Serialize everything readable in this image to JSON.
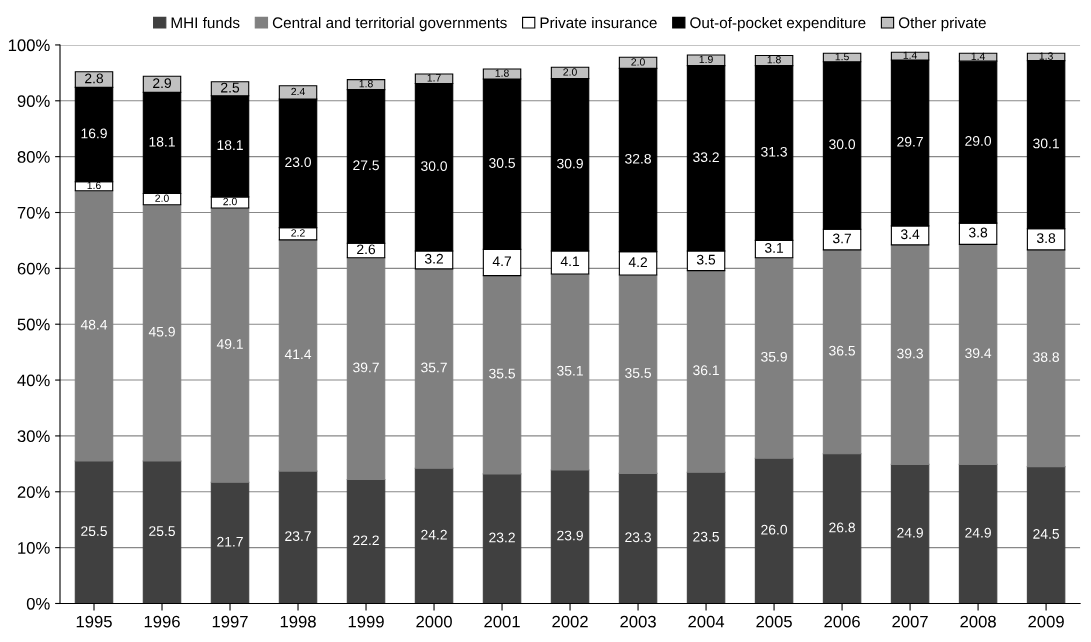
{
  "chart_data": {
    "type": "bar",
    "stacked": true,
    "categories": [
      "1995",
      "1996",
      "1997",
      "1998",
      "1999",
      "2000",
      "2001",
      "2002",
      "2003",
      "2004",
      "2005",
      "2006",
      "2007",
      "2008",
      "2009"
    ],
    "series": [
      {
        "name": "MHI funds",
        "color": "#404040",
        "values": [
          25.5,
          25.5,
          21.7,
          23.7,
          22.2,
          24.2,
          23.2,
          23.9,
          23.3,
          23.5,
          26.0,
          26.8,
          24.9,
          24.9,
          24.5
        ],
        "value_labels": [
          "25.5",
          "25.5",
          "21.7",
          "23.7",
          "22.2",
          "24.2",
          "23.2",
          "23.9",
          "23.3",
          "23.5",
          "26.0",
          "26.8",
          "24.9",
          "24.9",
          "24.5"
        ]
      },
      {
        "name": "Central and territorial governments",
        "color": "#808080",
        "values": [
          48.4,
          45.9,
          49.1,
          41.4,
          39.7,
          35.7,
          35.5,
          35.1,
          35.5,
          36.1,
          35.9,
          36.5,
          39.3,
          39.4,
          38.8
        ],
        "value_labels": [
          "48.4",
          "45.9",
          "49.1",
          "41.4",
          "39.7",
          "35.7",
          "35.5",
          "35.1",
          "35.5",
          "36.1",
          "35.9",
          "36.5",
          "39.3",
          "39.4",
          "38.8"
        ]
      },
      {
        "name": "Private insurance",
        "color": "#ffffff",
        "values": [
          1.6,
          2.0,
          2.0,
          2.2,
          2.6,
          3.2,
          4.7,
          4.1,
          4.2,
          3.5,
          3.1,
          3.7,
          3.4,
          3.8,
          3.8
        ],
        "value_labels": [
          "1.6",
          "2.0",
          "2.0",
          "2.2",
          "2.6",
          "3.2",
          "4.7",
          "4.1",
          "4.2",
          "3.5",
          "3.1",
          "3.7",
          "3.4",
          "3.8",
          "3.8"
        ]
      },
      {
        "name": "Out-of-pocket expenditure",
        "color": "#000000",
        "values": [
          16.9,
          18.1,
          18.1,
          23.0,
          27.5,
          30.0,
          30.5,
          30.9,
          32.8,
          33.2,
          31.3,
          30.0,
          29.7,
          29.0,
          30.1
        ],
        "value_labels": [
          "16.9",
          "18.1",
          "18.1",
          "23.0",
          "27.5",
          "30.0",
          "30.5",
          "30.9",
          "32.8",
          "33.2",
          "31.3",
          "30.0",
          "29.7",
          "29.0",
          "30.1"
        ]
      },
      {
        "name": "Other private",
        "color": "#c0c0c0",
        "values": [
          2.8,
          2.9,
          2.5,
          2.4,
          1.8,
          1.7,
          1.8,
          2.0,
          2.0,
          1.9,
          1.8,
          1.5,
          1.4,
          1.4,
          1.3
        ],
        "value_labels": [
          "2.8",
          "2.9",
          "2.5",
          "2.4",
          "1.8",
          "1.7",
          "1.8",
          "2.0",
          "2.0",
          "1.9",
          "1.8",
          "1.5",
          "1.4",
          "1.4",
          "1.3"
        ]
      }
    ],
    "ylim": [
      0,
      100
    ],
    "yticks": [
      {
        "value": 0,
        "label": "0%"
      },
      {
        "value": 10,
        "label": "10%"
      },
      {
        "value": 20,
        "label": "20%"
      },
      {
        "value": 30,
        "label": "30%"
      },
      {
        "value": 40,
        "label": "40%"
      },
      {
        "value": 50,
        "label": "50%"
      },
      {
        "value": 60,
        "label": "60%"
      },
      {
        "value": 70,
        "label": "70%"
      },
      {
        "value": 80,
        "label": "80%"
      },
      {
        "value": 90,
        "label": "90%"
      },
      {
        "value": 100,
        "label": "100%"
      }
    ],
    "grid": "y",
    "legend": "top"
  }
}
